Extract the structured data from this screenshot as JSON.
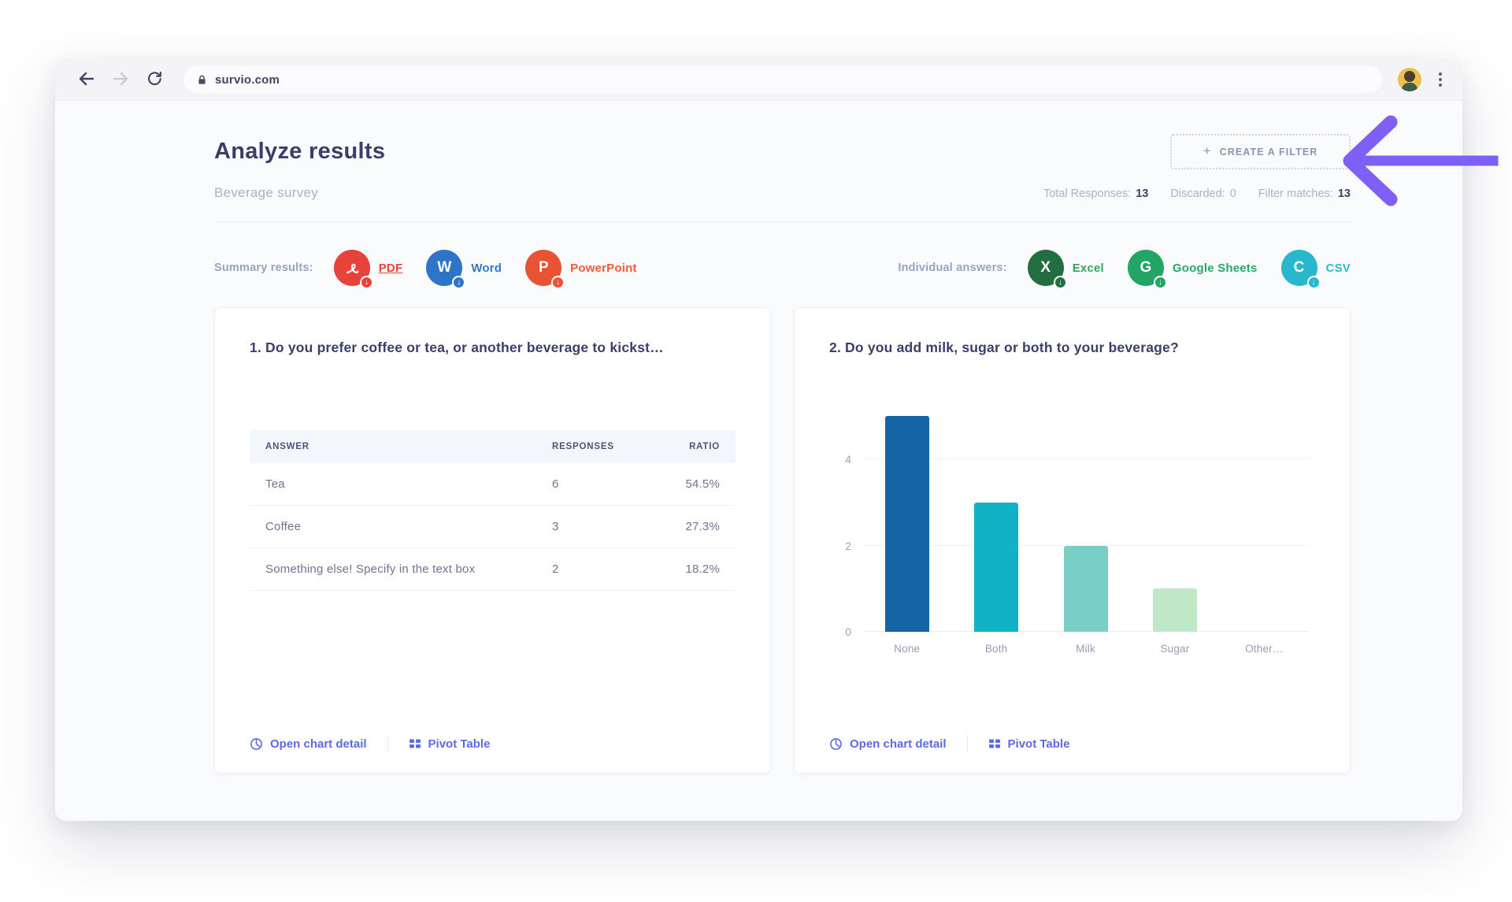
{
  "browser": {
    "url": "survio.com"
  },
  "header": {
    "title": "Analyze results",
    "subtitle": "Beverage survey",
    "create_filter": {
      "plus": "+",
      "label": "CREATE A FILTER"
    },
    "stats": [
      {
        "label": "Total Responses:",
        "value": "13",
        "bold": true
      },
      {
        "label": "Discarded:",
        "value": "0",
        "bold": false
      },
      {
        "label": "Filter matches:",
        "value": "13",
        "bold": true
      }
    ]
  },
  "exports": {
    "summary_label": "Summary results:",
    "summary_items": [
      {
        "name": "pdf",
        "label": "PDF",
        "circle_color": "#e8433a",
        "label_color": "#e8433a",
        "underline": true,
        "glyph": "pdf-loop"
      },
      {
        "name": "word",
        "label": "Word",
        "circle_color": "#2e74c9",
        "label_color": "#3576c5",
        "underline": false,
        "glyph": "W"
      },
      {
        "name": "powerpoint",
        "label": "PowerPoint",
        "circle_color": "#e85433",
        "label_color": "#ea5b3b",
        "underline": false,
        "glyph": "P"
      }
    ],
    "individual_label": "Individual answers:",
    "individual_items": [
      {
        "name": "excel",
        "label": "Excel",
        "circle_color": "#236e41",
        "label_color": "#35a25d",
        "underline": false,
        "glyph": "X"
      },
      {
        "name": "google-sheets",
        "label": "Google Sheets",
        "circle_color": "#23a566",
        "label_color": "#2aa76a",
        "underline": false,
        "glyph": "G"
      },
      {
        "name": "csv",
        "label": "CSV",
        "circle_color": "#28b7cd",
        "label_color": "#2db9cf",
        "underline": false,
        "glyph": "C"
      }
    ]
  },
  "question1": {
    "title": "1. Do you prefer coffee or tea, or another beverage to kickst…",
    "table": {
      "headers": [
        "ANSWER",
        "RESPONSES",
        "RATIO"
      ],
      "rows": [
        {
          "answer": "Tea",
          "responses": "6",
          "ratio": "54.5%"
        },
        {
          "answer": "Coffee",
          "responses": "3",
          "ratio": "27.3%"
        },
        {
          "answer": "Something else! Specify in the text box",
          "responses": "2",
          "ratio": "18.2%"
        }
      ]
    },
    "footer": {
      "chart_detail": "Open chart detail",
      "pivot": "Pivot Table"
    }
  },
  "question2": {
    "title": "2. Do you add milk, sugar or both to your beverage?",
    "footer": {
      "chart_detail": "Open chart detail",
      "pivot": "Pivot Table"
    }
  },
  "chart_data": {
    "type": "bar",
    "categories": [
      "None",
      "Both",
      "Milk",
      "Sugar",
      "Other…"
    ],
    "values": [
      5,
      3,
      2,
      1,
      0
    ],
    "bar_colors": [
      "#1565a5",
      "#12b2c6",
      "#79cfc5",
      "#c0e8c8",
      "#cccccc"
    ],
    "title": "2. Do you add milk, sugar or both to your beverage?",
    "xlabel": "",
    "ylabel": "",
    "ylim": [
      0,
      5.3
    ],
    "yticks": [
      0,
      2,
      4
    ],
    "grid": true,
    "legend": false
  },
  "icons": {
    "back": "left-arrow",
    "forward": "right-arrow",
    "refresh": "reload-circle",
    "lock": "padlock",
    "menu": "kebab-dots",
    "download_badge": "↓",
    "chart_detail": "pie-circle",
    "pivot": "grid-squares",
    "annotation": "left-pointing-arrow"
  },
  "colors": {
    "navy": "#3b3f68",
    "muted": "#a9b2c7",
    "link": "#5b6ce1",
    "arrow": "#7f60f6",
    "grid": "#f0f3f7"
  }
}
